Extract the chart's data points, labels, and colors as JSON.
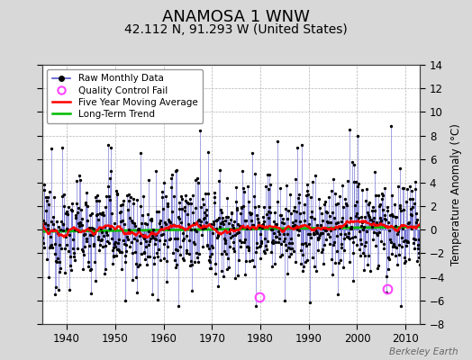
{
  "title": "ANAMOSA 1 WNW",
  "subtitle": "42.112 N, 91.293 W (United States)",
  "ylabel": "Temperature Anomaly (°C)",
  "watermark": "Berkeley Earth",
  "xmin": 1935,
  "xmax": 2013,
  "ymin": -8,
  "ymax": 14,
  "yticks": [
    -8,
    -6,
    -4,
    -2,
    0,
    2,
    4,
    6,
    8,
    10,
    12,
    14
  ],
  "xticks": [
    1940,
    1950,
    1960,
    1970,
    1980,
    1990,
    2000,
    2010
  ],
  "start_year": 1935,
  "end_year": 2013,
  "trend_slope": 0.005,
  "trend_intercept": 0.05,
  "qc_fail_points": [
    [
      1979.75,
      -5.7
    ],
    [
      2006.25,
      -5.0
    ]
  ],
  "background_color": "#d8d8d8",
  "plot_bg_color": "#ffffff",
  "line_color": "#5555cc",
  "dot_color": "#000000",
  "moving_avg_color": "#ff0000",
  "trend_color": "#00bb00",
  "qc_color": "#ff44ff",
  "legend_bg": "#ffffff",
  "title_fontsize": 13,
  "subtitle_fontsize": 10,
  "label_fontsize": 8.5,
  "tick_fontsize": 8.5,
  "seed": 12345
}
